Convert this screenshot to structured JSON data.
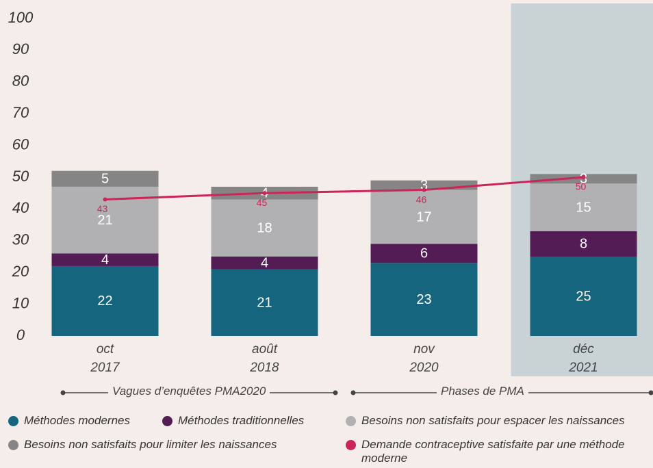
{
  "chart_data": {
    "type": "stacked_bar_line",
    "categories": [
      "oct 2017",
      "août 2018",
      "nov 2020",
      "déc 2021"
    ],
    "series": [
      {
        "name": "Méthodes modernes",
        "color": "#16657e",
        "values": [
          22,
          21,
          23,
          25
        ]
      },
      {
        "name": "Méthodes traditionnelles",
        "color": "#541c54",
        "values": [
          4,
          4,
          6,
          8
        ]
      },
      {
        "name": "Besoins non satisfaits pour espacer les naissances",
        "color": "#b1b1b4",
        "values": [
          21,
          18,
          17,
          15
        ]
      },
      {
        "name": "Besoins non satisfaits pour limiter les naissances",
        "color": "#858585",
        "values": [
          5,
          4,
          3,
          3
        ]
      },
      {
        "name": "Demande contraceptive satisfaite par une méthode moderne",
        "color": "#cc2458",
        "values": [
          43,
          45,
          46,
          50
        ],
        "type": "line"
      }
    ],
    "ylim": [
      0,
      100
    ],
    "yticks": [
      0,
      10,
      20,
      30,
      40,
      50,
      60,
      70,
      80,
      90,
      100
    ],
    "highlight": 3,
    "highlight_color": "#c9d3d6",
    "annotations": [
      "Vagues d’enquêtes PMA2020",
      "Phases de PMA"
    ]
  }
}
